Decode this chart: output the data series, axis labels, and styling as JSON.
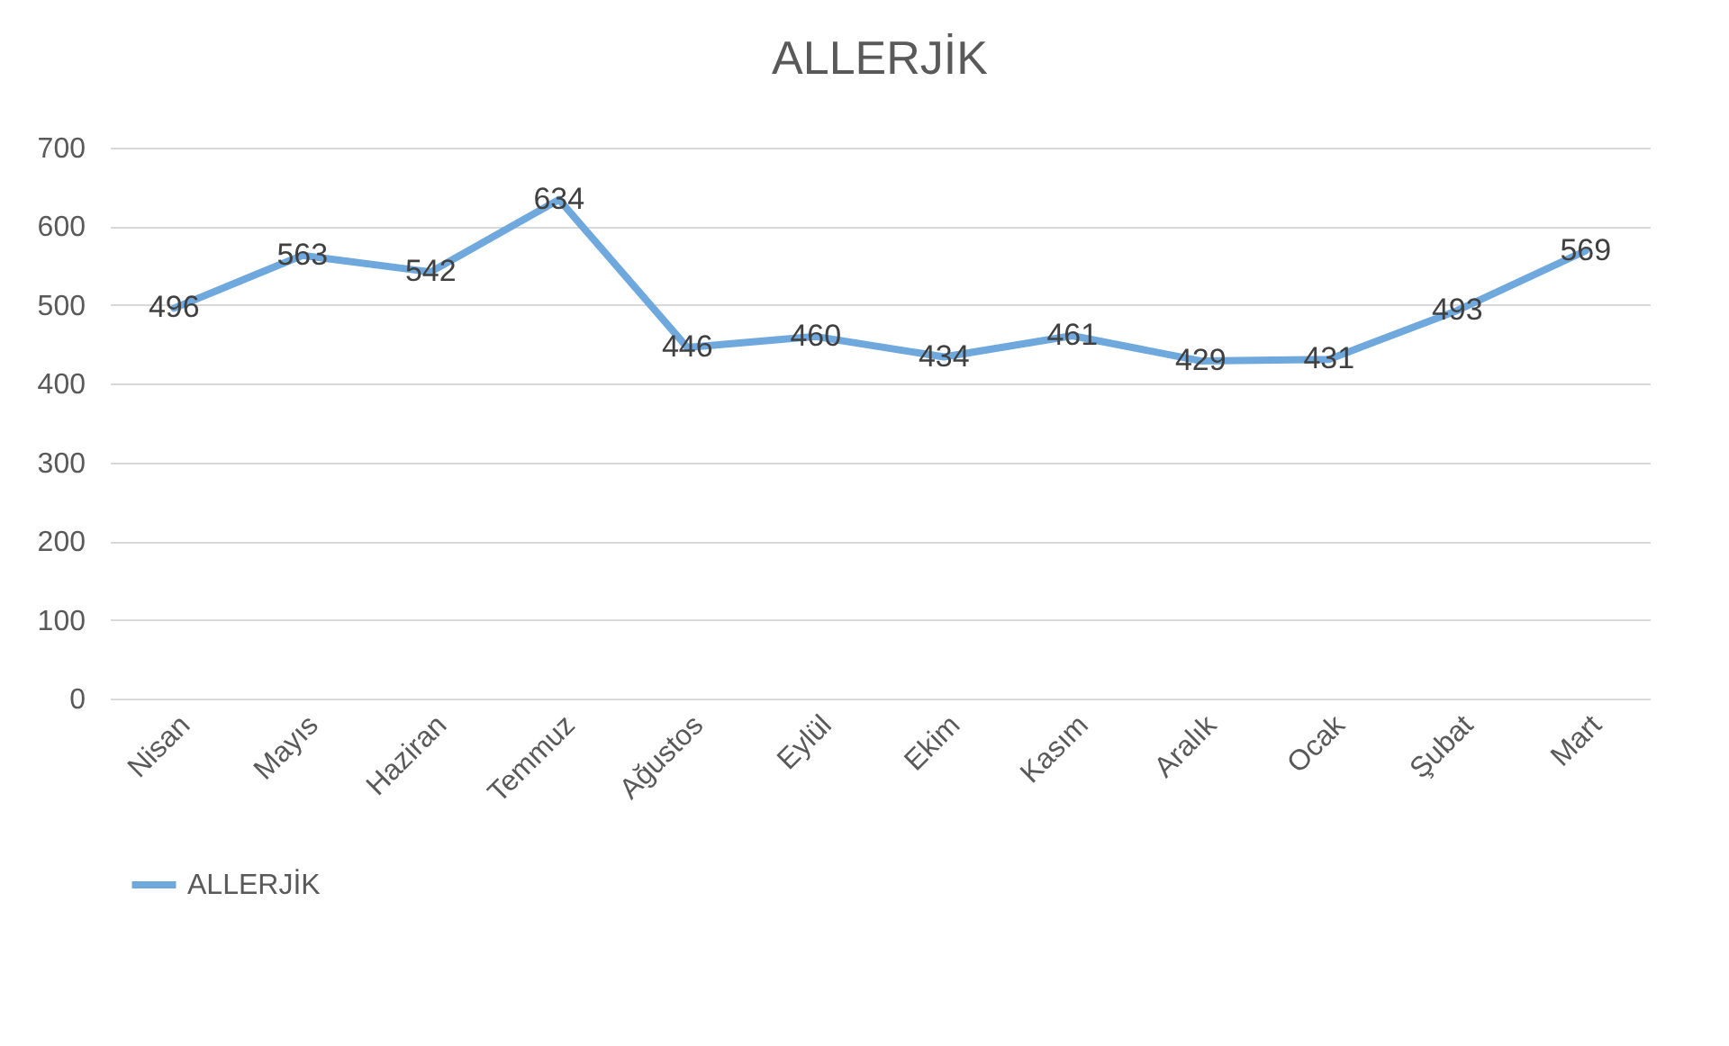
{
  "chart_data": {
    "type": "line",
    "title": "ALLERJİK",
    "categories": [
      "Nisan",
      "Mayıs",
      "Haziran",
      "Temmuz",
      "Ağustos",
      "Eylül",
      "Ekim",
      "Kasım",
      "Aralık",
      "Ocak",
      "Şubat",
      "Mart"
    ],
    "series": [
      {
        "name": "ALLERJİK",
        "color": "#6fa8dc",
        "values": [
          496,
          563,
          542,
          634,
          446,
          460,
          434,
          461,
          429,
          431,
          493,
          569
        ]
      }
    ],
    "ylim": [
      0,
      700
    ],
    "yticks": [
      0,
      100,
      200,
      300,
      400,
      500,
      600,
      700
    ],
    "grid": "y",
    "legend": "bottom",
    "data_labels": true,
    "line_style": "solid"
  }
}
